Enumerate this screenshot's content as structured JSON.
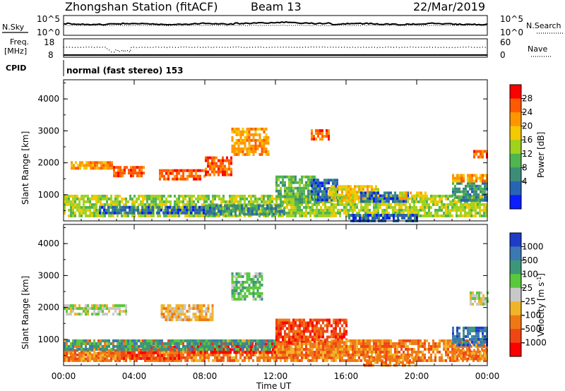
{
  "header": {
    "station": "Zhongshan Station (fitACF)",
    "beam": "Beam 13",
    "date": "22/Mar/2019"
  },
  "noise_panel": {
    "left_label": "N.Sky",
    "right_label": "N.Search",
    "ticks_left": [
      "10^5",
      "10^0"
    ],
    "ticks_right": [
      "10^5",
      "10^0"
    ]
  },
  "freq_panel": {
    "left_label_1": "Freq.",
    "left_label_2": "[MHz]",
    "right_label": "Nave",
    "ticks_left": [
      "18",
      "8"
    ],
    "ticks_right": [
      "60",
      "0"
    ]
  },
  "cpid": {
    "label": "CPID",
    "value": "normal (fast stereo) 153"
  },
  "power_legend": {
    "title": "Power [dB]",
    "ticks": [
      "28",
      "24",
      "20",
      "16",
      "12",
      "8",
      "4"
    ],
    "colors": [
      "#ff0000",
      "#ff5a00",
      "#ff9600",
      "#f5c800",
      "#a0d21e",
      "#50b450",
      "#3c8c78",
      "#2864b4",
      "#0a1eff"
    ]
  },
  "velocity_legend": {
    "title": "Velocity [m s",
    "title_sup": "-1",
    "title_end": "]",
    "ticks": [
      "1000",
      "500",
      "100",
      "25",
      "-25",
      "-100",
      "-500",
      "-1000"
    ],
    "colors": [
      "#1e3cc8",
      "#3c78b4",
      "#3c9678",
      "#5ac83c",
      "#c8c8c8",
      "#f0b428",
      "#f07814",
      "#f04614",
      "#ff0000"
    ]
  },
  "chart_data": {
    "type": "heatmap",
    "xlabel": "Time UT",
    "x_ticks": [
      "00:00",
      "04:00",
      "08:00",
      "12:00",
      "16:00",
      "20:00",
      "00:00"
    ],
    "x_range_hours": [
      0,
      24
    ],
    "ylabel": "Slant Range [km]",
    "y_ticks": [
      "4000",
      "3000",
      "2000",
      "1000"
    ],
    "y_range_km": [
      180,
      4600
    ],
    "panels": [
      {
        "name": "Power [dB]",
        "regions": [
          {
            "t": [
              0.4,
              2.8
            ],
            "r": [
              1800,
              2050
            ],
            "level": 2
          },
          {
            "t": [
              2.8,
              4.6
            ],
            "r": [
              1550,
              1900
            ],
            "level": 1
          },
          {
            "t": [
              5.4,
              8.0
            ],
            "r": [
              1450,
              1800
            ],
            "level": 1
          },
          {
            "t": [
              8.0,
              9.5
            ],
            "r": [
              1600,
              2200
            ],
            "level": 1
          },
          {
            "t": [
              9.5,
              11.6
            ],
            "r": [
              2300,
              3100
            ],
            "level": 2
          },
          {
            "t": [
              0.0,
              24.0
            ],
            "r": [
              350,
              1000
            ],
            "level": 4
          },
          {
            "t": [
              2.0,
              8.5
            ],
            "r": [
              400,
              650
            ],
            "level": 7
          },
          {
            "t": [
              8.0,
              12.5
            ],
            "r": [
              350,
              700
            ],
            "level": 6
          },
          {
            "t": [
              12.0,
              14.5
            ],
            "r": [
              800,
              1600
            ],
            "level": 5
          },
          {
            "t": [
              14.0,
              15.5
            ],
            "r": [
              800,
              1500
            ],
            "level": 7
          },
          {
            "t": [
              15.0,
              17.8
            ],
            "r": [
              800,
              1300
            ],
            "level": 3
          },
          {
            "t": [
              16.8,
              19.5
            ],
            "r": [
              800,
              1100
            ],
            "level": 7
          },
          {
            "t": [
              19.0,
              20.5
            ],
            "r": [
              900,
              1100
            ],
            "level": 3
          },
          {
            "t": [
              16.0,
              20.0
            ],
            "r": [
              200,
              400
            ],
            "level": 7
          },
          {
            "t": [
              22.0,
              24.0
            ],
            "r": [
              800,
              1400
            ],
            "level": 6
          },
          {
            "t": [
              22.0,
              24.0
            ],
            "r": [
              1400,
              1650
            ],
            "level": 2
          },
          {
            "t": [
              23.2,
              24.0
            ],
            "r": [
              2150,
              2400
            ],
            "level": 1
          },
          {
            "t": [
              14.0,
              15.0
            ],
            "r": [
              2700,
              3050
            ],
            "level": 1
          }
        ]
      },
      {
        "name": "Velocity [m s-1]",
        "regions": [
          {
            "t": [
              0.0,
              3.5
            ],
            "r": [
              1750,
              2100
            ],
            "level": 4
          },
          {
            "t": [
              5.5,
              8.5
            ],
            "r": [
              1600,
              2100
            ],
            "level": 5
          },
          {
            "t": [
              9.5,
              11.2
            ],
            "r": [
              2300,
              3100
            ],
            "level": 3
          },
          {
            "t": [
              0.0,
              24.0
            ],
            "r": [
              300,
              1000
            ],
            "level": 6
          },
          {
            "t": [
              0.0,
              3.0
            ],
            "r": [
              400,
              700
            ],
            "level": 6
          },
          {
            "t": [
              3.0,
              6.5
            ],
            "r": [
              400,
              800
            ],
            "level": 7
          },
          {
            "t": [
              7.0,
              12.0
            ],
            "r": [
              550,
              900
            ],
            "level": 8
          },
          {
            "t": [
              12.0,
              16.0
            ],
            "r": [
              900,
              1650
            ],
            "level": 7
          },
          {
            "t": [
              12.0,
              16.0
            ],
            "r": [
              500,
              900
            ],
            "level": 6
          },
          {
            "t": [
              15.0,
              18.5
            ],
            "r": [
              600,
              1000
            ],
            "level": 6
          },
          {
            "t": [
              17.0,
              20.0
            ],
            "r": [
              200,
              500
            ],
            "level": 6
          },
          {
            "t": [
              0.0,
              12.0
            ],
            "r": [
              700,
              1000
            ],
            "level": 2
          },
          {
            "t": [
              22.0,
              24.0
            ],
            "r": [
              800,
              1400
            ],
            "level": 1
          },
          {
            "t": [
              22.0,
              24.0
            ],
            "r": [
              400,
              700
            ],
            "level": 6
          },
          {
            "t": [
              23.0,
              24.0
            ],
            "r": [
              2100,
              2500
            ],
            "level": 4
          }
        ]
      }
    ]
  }
}
